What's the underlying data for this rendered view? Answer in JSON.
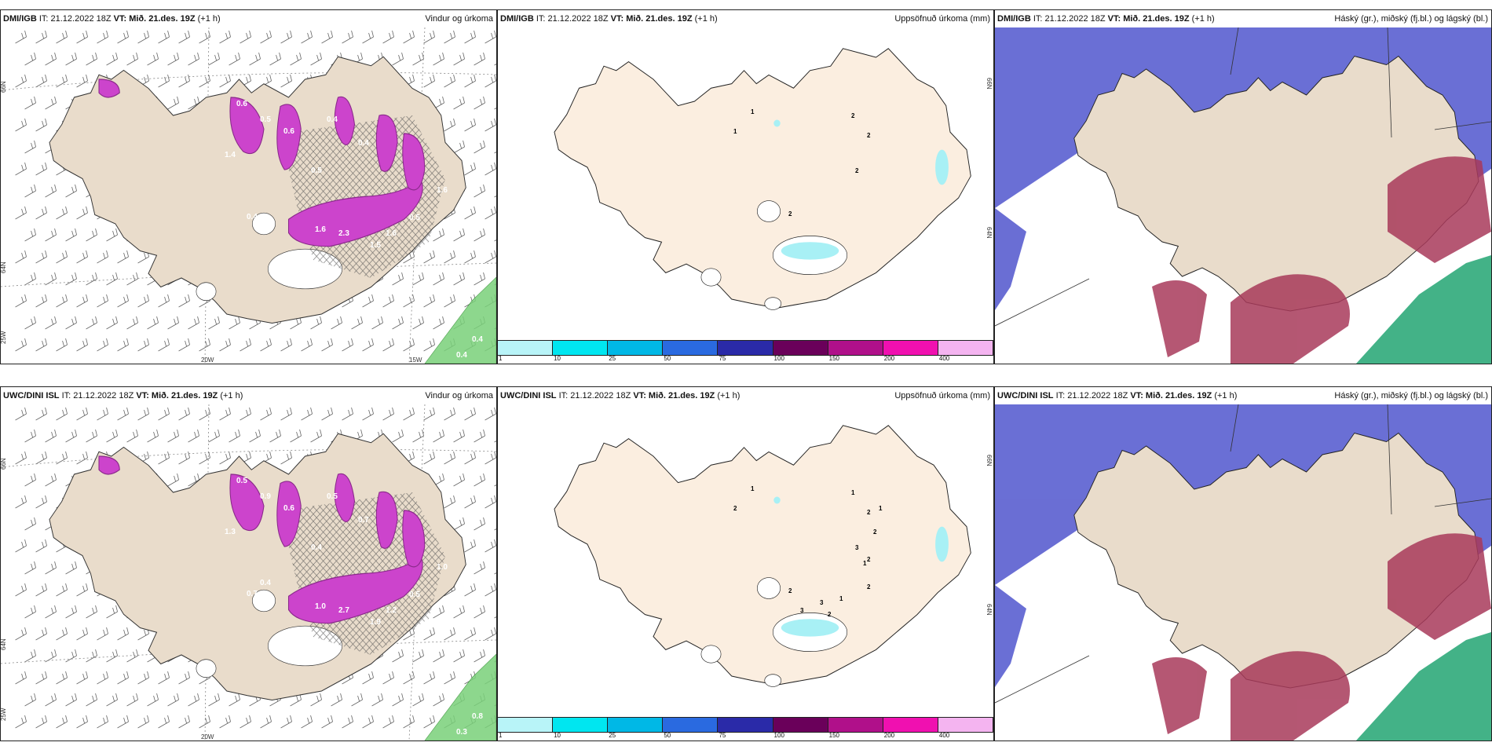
{
  "colors": {
    "land": "#e9dccb",
    "land_light": "#fbeee0",
    "precip": "#cc44cc",
    "precip_dark": "#8a2a8a",
    "rain_green": "#7ad17a",
    "accum_cyan": "#a8f0f5",
    "cloud_high": "#5a5fd0",
    "cloud_mid": "#a83a5a",
    "cloud_low": "#2faa7a"
  },
  "panels": [
    {
      "model": "DMI/IGB",
      "it": "IT: 21.12.2022 18Z",
      "vt": "VT: Mið. 21.des. 19Z",
      "lead": "(+1 h)",
      "title": "Vindur og úrkoma",
      "kind": "wind",
      "lon_labels": [
        "20W",
        "15W"
      ],
      "lat_labels": [
        "66N",
        "64N",
        "25W"
      ],
      "values": [
        "0.6",
        "0.5",
        "1.4",
        "0.6",
        "0.5",
        "0.4",
        "0.4",
        "1.6",
        "2.3",
        "1.5",
        "1.6",
        "0.4",
        "1.6",
        "0.5",
        "0.4",
        "0.4"
      ]
    },
    {
      "model": "DMI/IGB",
      "it": "IT: 21.12.2022 18Z",
      "vt": "VT: Mið. 21.des. 19Z",
      "lead": "(+1 h)",
      "title": "Uppsöfnuð úrkoma (mm)",
      "kind": "accum",
      "lat_labels": [
        "66N",
        "64N"
      ],
      "values": [
        "1",
        "1",
        "2",
        "2",
        "2",
        "2"
      ]
    },
    {
      "model": "DMI/IGB",
      "it": "IT: 21.12.2022 18Z",
      "vt": "VT: Mið. 21.des. 19Z",
      "lead": "(+1 h)",
      "title": "Háský (gr.), miðský (fj.bl.) og lágský (bl.)",
      "kind": "cloud"
    },
    {
      "model": "UWC/DINI ISL",
      "it": "IT: 21.12.2022 18Z",
      "vt": "VT: Mið. 21.des. 19Z",
      "lead": "(+1 h)",
      "title": "Vindur og úrkoma",
      "kind": "wind",
      "lon_labels": [
        "20W"
      ],
      "lat_labels": [
        "66N",
        "64N",
        "25W"
      ],
      "values": [
        "0.5",
        "0.9",
        "1.3",
        "0.6",
        "0.4",
        "0.5",
        "0.7",
        "1.0",
        "2.7",
        "1.9",
        "1.2",
        "0.7",
        "1.0",
        "0.5",
        "0.8",
        "0.3",
        "0.4"
      ]
    },
    {
      "model": "UWC/DINI ISL",
      "it": "IT: 21.12.2022 18Z",
      "vt": "VT: Mið. 21.des. 19Z",
      "lead": "(+1 h)",
      "title": "Uppsöfnuð úrkoma (mm)",
      "kind": "accum",
      "lat_labels": [
        "66N",
        "64N"
      ],
      "values": [
        "2",
        "1",
        "1",
        "2",
        "3",
        "2",
        "3",
        "3",
        "2",
        "1",
        "2",
        "2",
        "1",
        "1",
        "2"
      ]
    },
    {
      "model": "UWC/DINI ISL",
      "it": "IT: 21.12.2022 18Z",
      "vt": "VT: Mið. 21.des. 19Z",
      "lead": "(+1 h)",
      "title": "Háský (gr.), miðský (fj.bl.) og lágský (bl.)",
      "kind": "cloud"
    }
  ],
  "colorbar": {
    "ticks": [
      "1",
      "10",
      "25",
      "50",
      "75",
      "100",
      "150",
      "200",
      "400"
    ],
    "colors": [
      "#b8f4f8",
      "#00e6f0",
      "#00b8e6",
      "#2a6ae0",
      "#2a2aa8",
      "#6a005a",
      "#b0108a",
      "#f010b0",
      "#f4b4f0"
    ]
  }
}
